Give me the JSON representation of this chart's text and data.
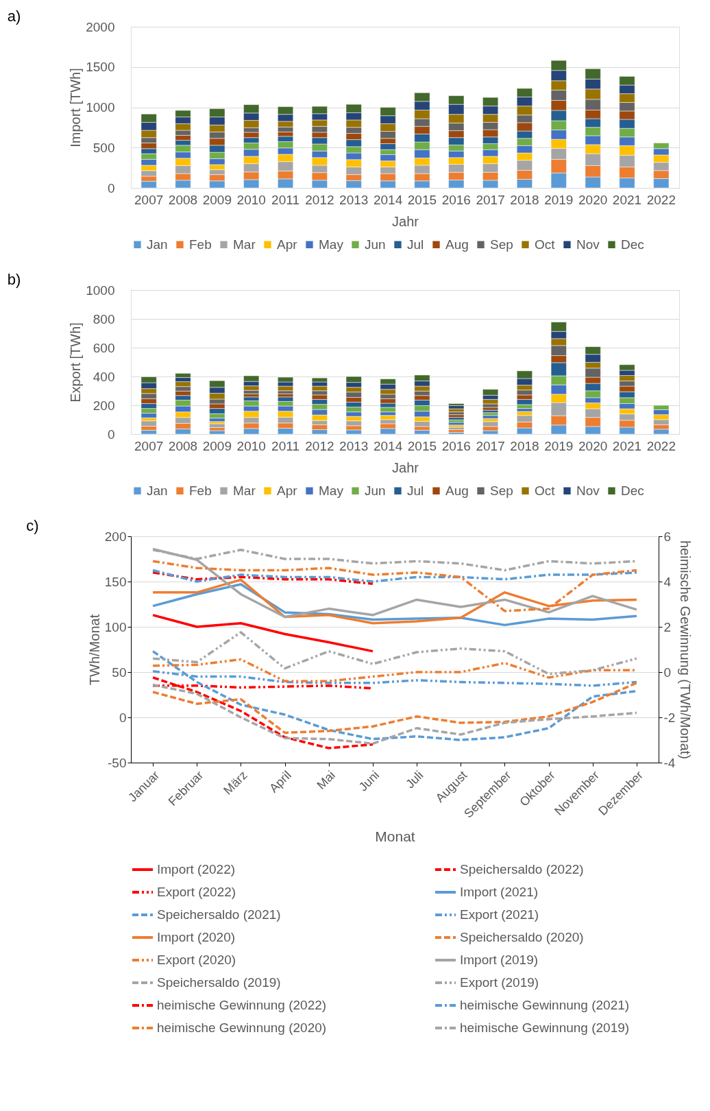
{
  "chart_data": [
    {
      "type": "bar",
      "title": "a)",
      "stacked": true,
      "xlabel": "Jahr",
      "ylabel": "Import [TWh]",
      "ylim": [
        0,
        2000
      ],
      "yticks": [
        0,
        500,
        1000,
        1500,
        2000
      ],
      "grid": "y",
      "legend": "bottom",
      "categories": [
        "2007",
        "2008",
        "2009",
        "2010",
        "2011",
        "2012",
        "2013",
        "2014",
        "2015",
        "2016",
        "2017",
        "2018",
        "2019",
        "2020",
        "2021",
        "2022"
      ],
      "series": [
        {
          "name": "Jan",
          "color": "#5b9bd5",
          "values": [
            83,
            95,
            87,
            103,
            112,
            95,
            91,
            87,
            87,
            99,
            95,
            107,
            186,
            136,
            124,
            116
          ]
        },
        {
          "name": "Feb",
          "color": "#ed7d31",
          "values": [
            62,
            83,
            78,
            95,
            99,
            95,
            74,
            91,
            91,
            95,
            99,
            112,
            169,
            141,
            136,
            99
          ]
        },
        {
          "name": "Mar",
          "color": "#a5a5a5",
          "values": [
            70,
            99,
            62,
            103,
            115,
            91,
            95,
            82,
            103,
            99,
            107,
            124,
            136,
            148,
            145,
            103
          ]
        },
        {
          "name": "Apr",
          "color": "#ffc000",
          "values": [
            66,
            91,
            62,
            91,
            91,
            95,
            91,
            75,
            91,
            83,
            91,
            91,
            112,
            112,
            120,
            91
          ]
        },
        {
          "name": "May",
          "color": "#4472c4",
          "values": [
            74,
            78,
            74,
            87,
            79,
            82,
            83,
            78,
            103,
            82,
            83,
            91,
            116,
            111,
            107,
            78
          ]
        },
        {
          "name": "Jun",
          "color": "#70ad47",
          "values": [
            70,
            83,
            79,
            79,
            78,
            87,
            78,
            62,
            95,
            75,
            74,
            90,
            115,
            104,
            107,
            71
          ]
        },
        {
          "name": "Jul",
          "color": "#255e91",
          "values": [
            62,
            62,
            87,
            66,
            66,
            79,
            87,
            74,
            99,
            91,
            83,
            91,
            128,
            107,
            112,
            null
          ]
        },
        {
          "name": "Aug",
          "color": "#9e480e",
          "values": [
            71,
            62,
            86,
            66,
            54,
            66,
            78,
            66,
            95,
            86,
            91,
            104,
            124,
            107,
            103,
            null
          ]
        },
        {
          "name": "Sep",
          "color": "#636363",
          "values": [
            66,
            62,
            79,
            58,
            62,
            74,
            75,
            87,
            95,
            95,
            91,
            94,
            128,
            133,
            107,
            null
          ]
        },
        {
          "name": "Oct",
          "color": "#997300",
          "values": [
            91,
            82,
            87,
            90,
            70,
            79,
            91,
            95,
            107,
            108,
            99,
            112,
            116,
            128,
            108,
            null
          ]
        },
        {
          "name": "Nov",
          "color": "#264478",
          "values": [
            99,
            83,
            99,
            91,
            87,
            78,
            90,
            99,
            108,
            124,
            103,
            112,
            128,
            124,
            107,
            null
          ]
        },
        {
          "name": "Dec",
          "color": "#43682b",
          "values": [
            103,
            82,
            103,
            104,
            95,
            91,
            104,
            104,
            107,
            107,
            107,
            107,
            124,
            128,
            108,
            null
          ]
        }
      ]
    },
    {
      "type": "bar",
      "title": "b)",
      "stacked": true,
      "xlabel": "Jahr",
      "ylabel": "Export [TWh]",
      "ylim": [
        0,
        1000
      ],
      "yticks": [
        0,
        200,
        400,
        600,
        800,
        1000
      ],
      "grid": "y",
      "legend": "bottom",
      "categories": [
        "2007",
        "2008",
        "2009",
        "2010",
        "2011",
        "2012",
        "2013",
        "2014",
        "2015",
        "2016",
        "2017",
        "2018",
        "2019",
        "2020",
        "2021",
        "2022"
      ],
      "series": [
        {
          "name": "Jan",
          "color": "#5b9bd5",
          "values": [
            27,
            36,
            24,
            39,
            41,
            31,
            29,
            39,
            27,
            12,
            24,
            43,
            63,
            53,
            48,
            34
          ]
        },
        {
          "name": "Feb",
          "color": "#ed7d31",
          "values": [
            28,
            39,
            22,
            38,
            36,
            34,
            29,
            33,
            26,
            19,
            29,
            41,
            65,
            63,
            48,
            31
          ]
        },
        {
          "name": "Mar",
          "color": "#a5a5a5",
          "values": [
            37,
            41,
            26,
            39,
            41,
            29,
            34,
            29,
            36,
            17,
            34,
            46,
            91,
            60,
            44,
            36
          ]
        },
        {
          "name": "Apr",
          "color": "#ffc000",
          "values": [
            21,
            38,
            15,
            43,
            41,
            39,
            31,
            29,
            31,
            15,
            21,
            27,
            58,
            41,
            36,
            34
          ]
        },
        {
          "name": "May",
          "color": "#4472c4",
          "values": [
            32,
            41,
            24,
            36,
            36,
            38,
            31,
            24,
            39,
            19,
            22,
            21,
            65,
            36,
            36,
            34
          ]
        },
        {
          "name": "Jun",
          "color": "#70ad47",
          "values": [
            33,
            41,
            31,
            36,
            32,
            36,
            34,
            32,
            39,
            17,
            19,
            27,
            63,
            48,
            41,
            31
          ]
        },
        {
          "name": "Jul",
          "color": "#255e91",
          "values": [
            34,
            32,
            36,
            27,
            31,
            34,
            34,
            28,
            38,
            17,
            17,
            36,
            91,
            51,
            41,
            null
          ]
        },
        {
          "name": "Aug",
          "color": "#9e480e",
          "values": [
            34,
            31,
            32,
            22,
            22,
            31,
            33,
            32,
            32,
            19,
            20,
            31,
            49,
            43,
            39,
            null
          ]
        },
        {
          "name": "Sep",
          "color": "#636363",
          "values": [
            36,
            31,
            33,
            24,
            21,
            29,
            37,
            31,
            31,
            19,
            24,
            34,
            70,
            63,
            36,
            null
          ]
        },
        {
          "name": "Oct",
          "color": "#997300",
          "values": [
            34,
            34,
            41,
            31,
            32,
            32,
            33,
            34,
            34,
            22,
            31,
            34,
            48,
            41,
            38,
            null
          ]
        },
        {
          "name": "Nov",
          "color": "#264478",
          "values": [
            41,
            29,
            41,
            31,
            29,
            29,
            34,
            36,
            36,
            22,
            29,
            46,
            50,
            55,
            36,
            null
          ]
        },
        {
          "name": "Dec",
          "color": "#43682b",
          "values": [
            41,
            29,
            46,
            39,
            33,
            28,
            41,
            36,
            41,
            14,
            41,
            53,
            65,
            53,
            39,
            null
          ]
        }
      ]
    },
    {
      "type": "line",
      "title": "c)",
      "xlabel": "Monat",
      "ylabel": "TWh/Monat",
      "y2label": "heimische Gewinnung (TWh/Monat)",
      "ylim": [
        -50,
        200
      ],
      "yticks": [
        -50,
        0,
        50,
        100,
        150,
        200
      ],
      "y2lim": [
        -4,
        6
      ],
      "y2ticks": [
        -4,
        -2,
        0,
        2,
        4,
        6
      ],
      "grid": "y",
      "legend": "bottom",
      "categories": [
        "Januar",
        "Februar",
        "März",
        "April",
        "Mai",
        "Juni",
        "Juli",
        "August",
        "September",
        "Oktober",
        "November",
        "Dezember"
      ],
      "series": [
        {
          "name": "Import (2022)",
          "color": "#ff0000",
          "line_style": "solid",
          "values": [
            113,
            100,
            104,
            92,
            83,
            73,
            null,
            null,
            null,
            null,
            null,
            null
          ]
        },
        {
          "name": "Speichersaldo (2022)",
          "color": "#ff0000",
          "line_style": "dashed",
          "values": [
            44,
            28,
            7,
            -22,
            -34,
            -30,
            null,
            null,
            null,
            null,
            null,
            null
          ]
        },
        {
          "name": "Export (2022)",
          "color": "#ff0000",
          "line_style": "dashdotdot",
          "values": [
            35,
            35,
            33,
            34,
            35,
            32,
            null,
            null,
            null,
            null,
            null,
            null
          ]
        },
        {
          "name": "Import (2021)",
          "color": "#5b9bd5",
          "line_style": "solid",
          "values": [
            123,
            136,
            147,
            116,
            114,
            108,
            109,
            110,
            102,
            109,
            108,
            112
          ]
        },
        {
          "name": "Speichersaldo (2021)",
          "color": "#5b9bd5",
          "line_style": "dashed",
          "values": [
            73,
            39,
            14,
            3,
            -14,
            -24,
            -21,
            -25,
            -22,
            -12,
            23,
            29
          ]
        },
        {
          "name": "Export (2021)",
          "color": "#5b9bd5",
          "line_style": "dashdotdot",
          "values": [
            51,
            45,
            45,
            39,
            38,
            38,
            41,
            39,
            38,
            37,
            35,
            39
          ]
        },
        {
          "name": "Import (2020)",
          "color": "#ed7d31",
          "line_style": "solid",
          "values": [
            138,
            138,
            152,
            111,
            113,
            104,
            106,
            110,
            138,
            123,
            129,
            130
          ]
        },
        {
          "name": "Speichersaldo (2020)",
          "color": "#ed7d31",
          "line_style": "dashed",
          "values": [
            28,
            15,
            20,
            -17,
            -15,
            -10,
            1,
            -6,
            -5,
            1,
            17,
            38
          ]
        },
        {
          "name": "Export (2020)",
          "color": "#ed7d31",
          "line_style": "dashdotdot",
          "values": [
            57,
            58,
            64,
            40,
            40,
            45,
            50,
            50,
            60,
            44,
            52,
            52
          ]
        },
        {
          "name": "Import (2019)",
          "color": "#a5a5a5",
          "line_style": "solid",
          "values": [
            186,
            174,
            136,
            111,
            120,
            113,
            130,
            122,
            130,
            116,
            134,
            119
          ]
        },
        {
          "name": "Speichersaldo (2019)",
          "color": "#a5a5a5",
          "line_style": "dashed",
          "values": [
            36,
            26,
            0,
            -23,
            -24,
            -29,
            -12,
            -19,
            -6,
            -2,
            1,
            5
          ]
        },
        {
          "name": "Export (2019)",
          "color": "#a5a5a5",
          "line_style": "dashdotdot",
          "values": [
            65,
            61,
            94,
            54,
            73,
            59,
            72,
            76,
            73,
            48,
            52,
            65
          ]
        },
        {
          "name": "heimische Gewinnung (2022)",
          "color": "#ff0000",
          "line_style": "dashdot",
          "axis": "y2",
          "values": [
            4.4,
            4.1,
            4.2,
            4.1,
            4.1,
            3.9,
            null,
            null,
            null,
            null,
            null,
            null
          ]
        },
        {
          "name": "heimische Gewinnung (2021)",
          "color": "#5b9bd5",
          "line_style": "dashdot",
          "axis": "y2",
          "values": [
            4.5,
            4.0,
            4.3,
            4.2,
            4.2,
            4.0,
            4.2,
            4.2,
            4.1,
            4.3,
            4.3,
            4.4
          ]
        },
        {
          "name": "heimische Gewinnung (2020)",
          "color": "#ed7d31",
          "line_style": "dashdot",
          "axis": "y2",
          "values": [
            4.9,
            4.6,
            4.5,
            4.5,
            4.6,
            4.3,
            4.4,
            4.2,
            2.7,
            2.8,
            4.3,
            4.5
          ]
        },
        {
          "name": "heimische Gewinnung (2019)",
          "color": "#a5a5a5",
          "line_style": "dashdot",
          "axis": "y2",
          "values": [
            5.4,
            5.0,
            5.4,
            5.0,
            5.0,
            4.8,
            4.9,
            4.8,
            4.5,
            4.9,
            4.8,
            4.9
          ]
        }
      ]
    }
  ]
}
